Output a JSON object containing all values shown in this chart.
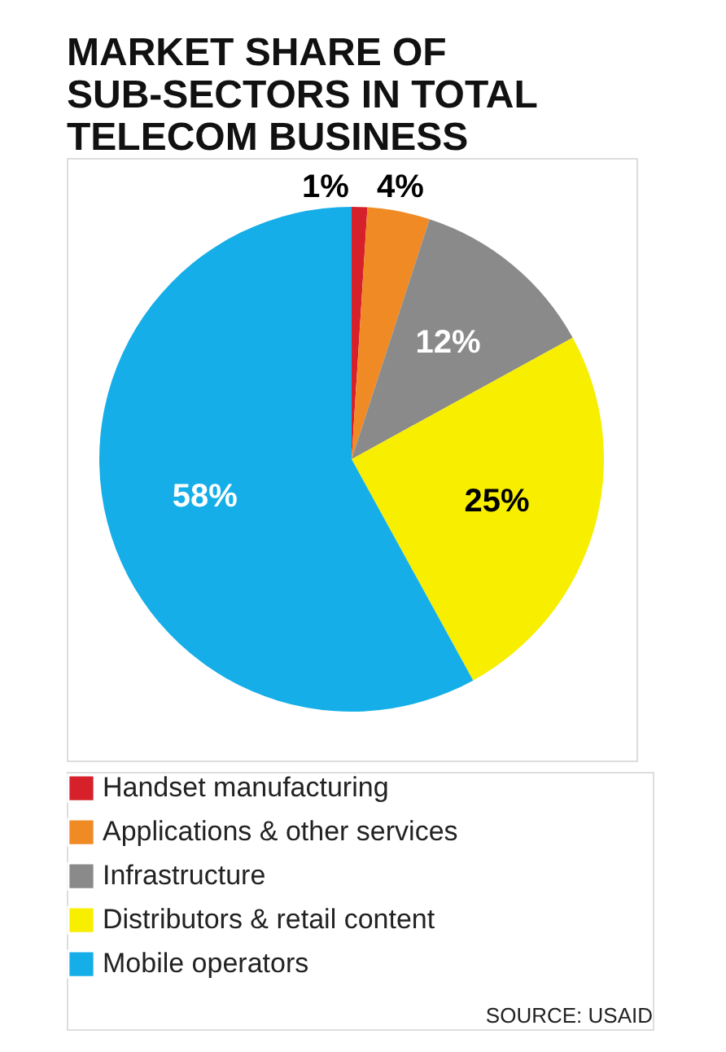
{
  "chart_data": {
    "type": "pie",
    "title": "MARKET SHARE OF SUB-SECTORS IN TOTAL TELECOM BUSINESS",
    "categories": [
      "Handset manufacturing",
      "Applications & other services",
      "Infrastructure",
      "Distributors & retail content",
      "Mobile operators"
    ],
    "values": [
      1,
      4,
      12,
      25,
      58
    ],
    "value_labels": [
      "1%",
      "4%",
      "12%",
      "25%",
      "58%"
    ],
    "colors": [
      "#d6202a",
      "#f08a24",
      "#8a8a8a",
      "#f7ee00",
      "#15aee8"
    ],
    "legend": "bottom left",
    "annotations": [
      "SOURCE: USAID"
    ]
  }
}
